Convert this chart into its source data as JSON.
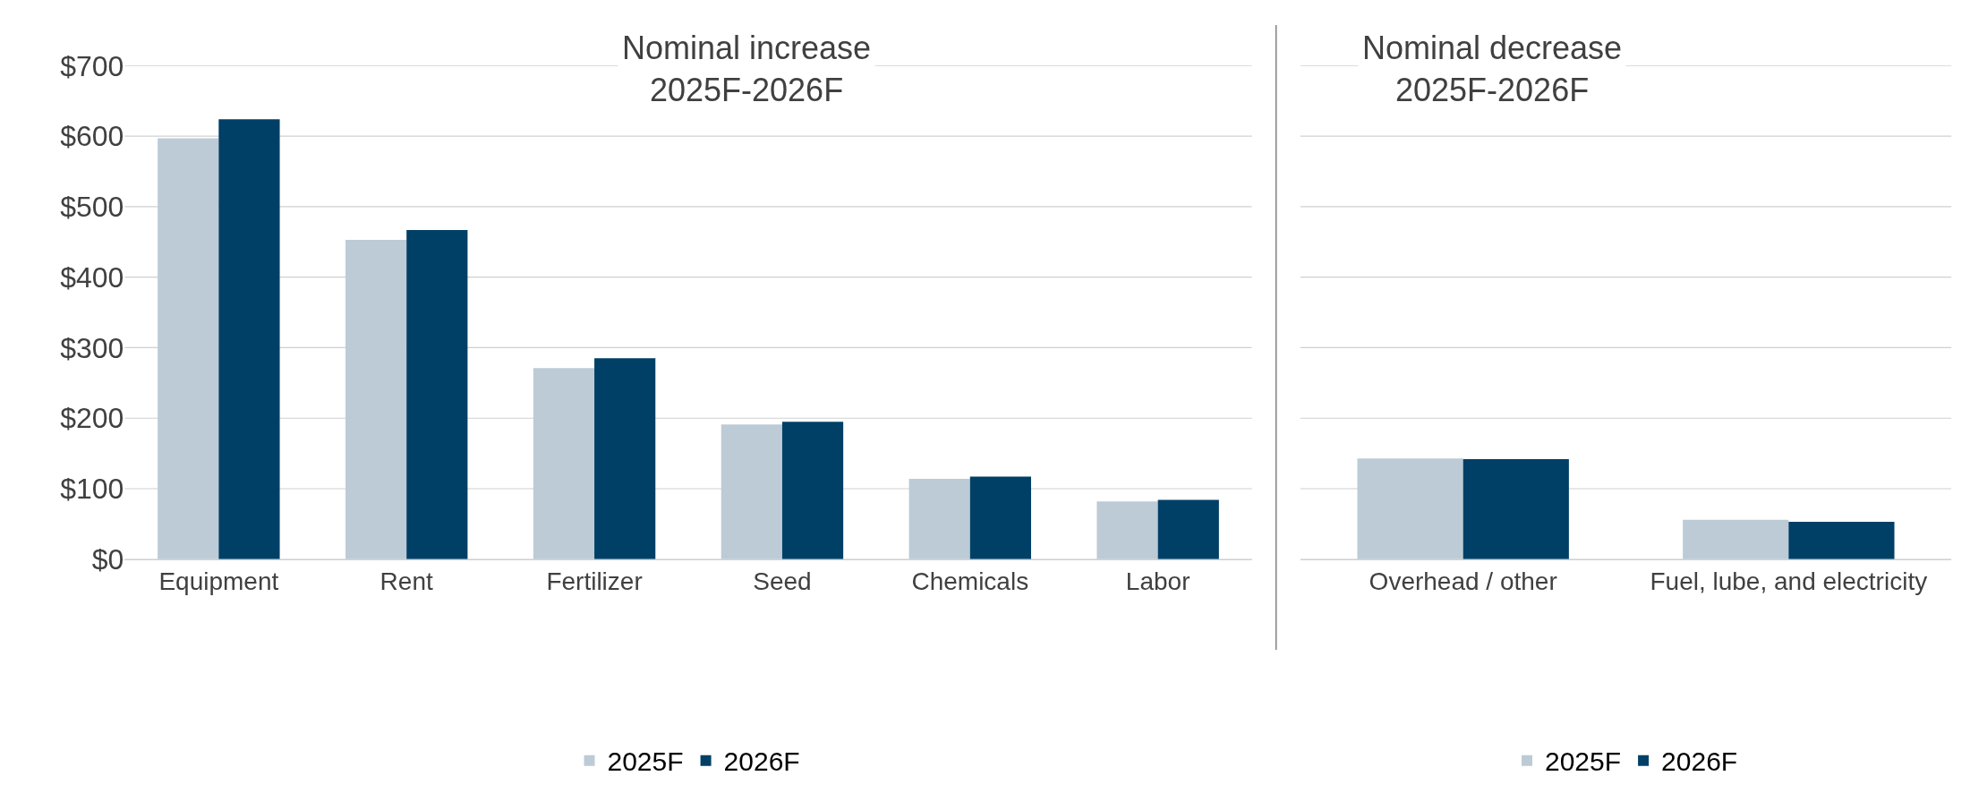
{
  "chart_data": [
    {
      "type": "bar",
      "title": "Nominal increase\n2025F-2026F",
      "categories": [
        "Equipment",
        "Rent",
        "Fertilizer",
        "Seed",
        "Chemicals",
        "Labor"
      ],
      "series": [
        {
          "name": "2025F",
          "color": "#bccbd6",
          "values": [
            597,
            453,
            271,
            191,
            114,
            82
          ]
        },
        {
          "name": "2026F",
          "color": "#003f66",
          "values": [
            624,
            467,
            285,
            195,
            117,
            84
          ]
        }
      ],
      "ylim": [
        0,
        700
      ],
      "yticks": [
        {
          "value": 0,
          "label": "$0"
        },
        {
          "value": 100,
          "label": "$100"
        },
        {
          "value": 200,
          "label": "$200"
        },
        {
          "value": 300,
          "label": "$300"
        },
        {
          "value": 400,
          "label": "$400"
        },
        {
          "value": 500,
          "label": "$500"
        },
        {
          "value": 600,
          "label": "$600"
        },
        {
          "value": 700,
          "label": "$700"
        }
      ],
      "grid": "y",
      "legend": "bottom"
    },
    {
      "type": "bar",
      "title": "Nominal decrease\n2025F-2026F",
      "categories": [
        "Overhead / other",
        "Fuel, lube, and electricity"
      ],
      "series": [
        {
          "name": "2025F",
          "color": "#bccbd6",
          "values": [
            143,
            56
          ]
        },
        {
          "name": "2026F",
          "color": "#003f66",
          "values": [
            142,
            53
          ]
        }
      ],
      "ylim": [
        0,
        700
      ],
      "yticks": [
        {
          "value": 0,
          "label": null
        },
        {
          "value": 100,
          "label": null
        },
        {
          "value": 200,
          "label": null
        },
        {
          "value": 300,
          "label": null
        },
        {
          "value": 400,
          "label": null
        },
        {
          "value": 500,
          "label": null
        },
        {
          "value": 600,
          "label": null
        },
        {
          "value": 700,
          "label": null
        }
      ],
      "grid": "y",
      "legend": "bottom",
      "tick_labels": "x"
    }
  ]
}
